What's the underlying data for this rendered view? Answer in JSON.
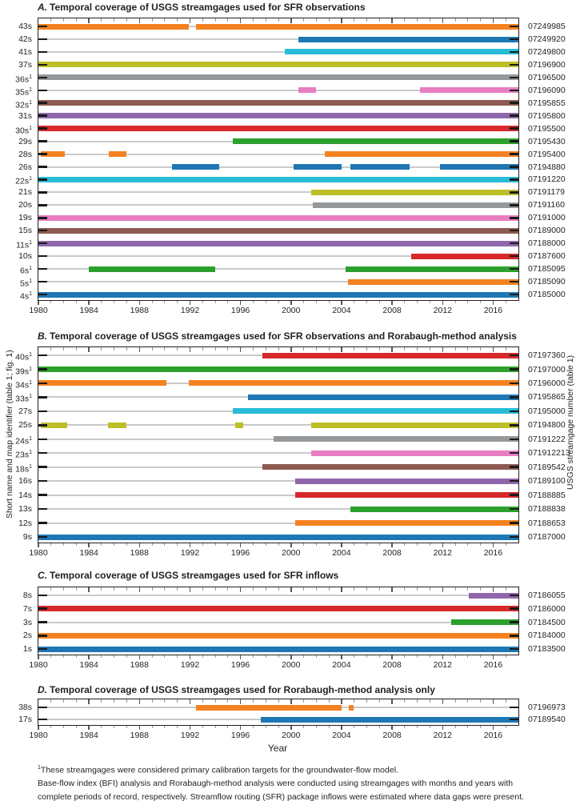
{
  "figure": {
    "left_axis_label": "Short name and map identifier (table 1; fig. 1)",
    "right_axis_label": "USGS streamgage number (table 1)",
    "x_axis_label": "Year",
    "footnote_marker": "1",
    "footnotes": [
      "These streamgages were considered primary calibration targets for the groundwater-flow model.",
      "Base-flow index (BFI) analysis and Rorabaugh-method analysis were conducted using streamgages with months and years with",
      "complete periods of record, respectively. Streamflow routing (SFR) package inflows were estimated where data gaps were present."
    ]
  },
  "palette": {
    "blue": "#1F77B4",
    "orange": "#F58220",
    "green": "#2CA02C",
    "red": "#D7282A",
    "purple": "#9067AD",
    "brown": "#8C5A50",
    "pink": "#E87EC1",
    "gray": "#95989B",
    "olive": "#BEBF27",
    "cyan": "#28BDD7"
  },
  "chart_data": [
    {
      "type": "bar",
      "subtype": "horizontal-interval-timeline",
      "letter": "A.",
      "title": "Temporal coverage of USGS streamgages used for SFR observations",
      "xlabel": "Year",
      "xlim": [
        1980,
        2018
      ],
      "x_major_ticks": [
        1980,
        1984,
        1988,
        1992,
        1996,
        2000,
        2004,
        2008,
        2012,
        2016
      ],
      "x_minor_tick_interval": 1,
      "grid": false,
      "legend": "none",
      "rows": [
        {
          "label": "43s",
          "footnoted": false,
          "gage": "07249985",
          "color": "orange",
          "intervals": [
            [
              1980,
              1991.9
            ],
            [
              1992.45,
              2018
            ]
          ]
        },
        {
          "label": "42s",
          "footnoted": false,
          "gage": "07249920",
          "color": "blue",
          "intervals": [
            [
              2000.6,
              2018
            ]
          ]
        },
        {
          "label": "41s",
          "footnoted": false,
          "gage": "07249800",
          "color": "cyan",
          "intervals": [
            [
              1999.5,
              2018
            ]
          ]
        },
        {
          "label": "37s",
          "footnoted": false,
          "gage": "07196900",
          "color": "olive",
          "intervals": [
            [
              1980,
              2018
            ]
          ]
        },
        {
          "label": "36s",
          "footnoted": true,
          "gage": "07196500",
          "color": "gray",
          "intervals": [
            [
              1980,
              2018
            ]
          ]
        },
        {
          "label": "35s",
          "footnoted": true,
          "gage": "07196090",
          "color": "pink",
          "intervals": [
            [
              2000.6,
              2002.0
            ],
            [
              2010.2,
              2018
            ]
          ]
        },
        {
          "label": "32s",
          "footnoted": true,
          "gage": "07195855",
          "color": "brown",
          "intervals": [
            [
              1980,
              2018
            ]
          ]
        },
        {
          "label": "31s",
          "footnoted": false,
          "gage": "07195800",
          "color": "purple",
          "intervals": [
            [
              1980,
              2018
            ]
          ]
        },
        {
          "label": "30s",
          "footnoted": true,
          "gage": "07195500",
          "color": "red",
          "intervals": [
            [
              1980,
              2018
            ]
          ]
        },
        {
          "label": "29s",
          "footnoted": false,
          "gage": "07195430",
          "color": "green",
          "intervals": [
            [
              1995.4,
              2018
            ]
          ]
        },
        {
          "label": "28s",
          "footnoted": false,
          "gage": "07195400",
          "color": "orange",
          "intervals": [
            [
              1980.2,
              1982.1
            ],
            [
              1985.6,
              1987.0
            ],
            [
              2002.7,
              2018
            ]
          ]
        },
        {
          "label": "26s",
          "footnoted": false,
          "gage": "07194880",
          "color": "blue",
          "intervals": [
            [
              1990.6,
              1994.3
            ],
            [
              2000.2,
              2004.0
            ],
            [
              2004.7,
              2009.4
            ],
            [
              2011.8,
              2018
            ]
          ]
        },
        {
          "label": "22s",
          "footnoted": true,
          "gage": "07191220",
          "color": "cyan",
          "intervals": [
            [
              1980,
              2018
            ]
          ]
        },
        {
          "label": "21s",
          "footnoted": false,
          "gage": "07191179",
          "color": "olive",
          "intervals": [
            [
              2001.6,
              2018
            ]
          ]
        },
        {
          "label": "20s",
          "footnoted": false,
          "gage": "07191160",
          "color": "gray",
          "intervals": [
            [
              2001.7,
              2018
            ]
          ]
        },
        {
          "label": "19s",
          "footnoted": false,
          "gage": "07191000",
          "color": "pink",
          "intervals": [
            [
              1980,
              2018
            ]
          ]
        },
        {
          "label": "15s",
          "footnoted": false,
          "gage": "07189000",
          "color": "brown",
          "intervals": [
            [
              1980,
              2018
            ]
          ]
        },
        {
          "label": "11s",
          "footnoted": true,
          "gage": "07188000",
          "color": "purple",
          "intervals": [
            [
              1980,
              2018
            ]
          ]
        },
        {
          "label": "10s",
          "footnoted": false,
          "gage": "07187600",
          "color": "red",
          "intervals": [
            [
              2009.5,
              2018
            ]
          ]
        },
        {
          "label": "6s",
          "footnoted": true,
          "gage": "07185095",
          "color": "green",
          "intervals": [
            [
              1984.0,
              1994.0
            ],
            [
              2004.3,
              2018
            ]
          ]
        },
        {
          "label": "5s",
          "footnoted": true,
          "gage": "07185090",
          "color": "orange",
          "intervals": [
            [
              2004.5,
              2018
            ]
          ]
        },
        {
          "label": "4s",
          "footnoted": true,
          "gage": "07185000",
          "color": "blue",
          "intervals": [
            [
              1980,
              2018
            ]
          ]
        }
      ]
    },
    {
      "type": "bar",
      "subtype": "horizontal-interval-timeline",
      "letter": "B.",
      "title": "Temporal coverage of USGS streamgages used for SFR observations and Rorabaugh-method analysis",
      "xlabel": "Year",
      "xlim": [
        1980,
        2018
      ],
      "x_major_ticks": [
        1980,
        1984,
        1988,
        1992,
        1996,
        2000,
        2004,
        2008,
        2012,
        2016
      ],
      "x_minor_tick_interval": 1,
      "grid": false,
      "legend": "none",
      "rows": [
        {
          "label": "40s",
          "footnoted": true,
          "gage": "07197360",
          "color": "red",
          "intervals": [
            [
              1997.7,
              2018
            ]
          ]
        },
        {
          "label": "39s",
          "footnoted": true,
          "gage": "07197000",
          "color": "green",
          "intervals": [
            [
              1980,
              2018
            ]
          ]
        },
        {
          "label": "34s",
          "footnoted": true,
          "gage": "07196000",
          "color": "orange",
          "intervals": [
            [
              1980,
              1990.1
            ],
            [
              1991.9,
              2018
            ]
          ]
        },
        {
          "label": "33s",
          "footnoted": true,
          "gage": "07195865",
          "color": "blue",
          "intervals": [
            [
              1996.6,
              2018
            ]
          ]
        },
        {
          "label": "27s",
          "footnoted": false,
          "gage": "07195000",
          "color": "cyan",
          "intervals": [
            [
              1995.4,
              2018
            ]
          ]
        },
        {
          "label": "25s",
          "footnoted": false,
          "gage": "07194800",
          "color": "olive",
          "intervals": [
            [
              1980.2,
              1982.3
            ],
            [
              1985.5,
              1987.0
            ],
            [
              1995.6,
              1996.2
            ],
            [
              2001.6,
              2018
            ]
          ]
        },
        {
          "label": "24s",
          "footnoted": true,
          "gage": "07191222",
          "color": "gray",
          "intervals": [
            [
              1998.6,
              2018
            ]
          ]
        },
        {
          "label": "23s",
          "footnoted": true,
          "gage": "071912213",
          "color": "pink",
          "intervals": [
            [
              2001.6,
              2018
            ]
          ]
        },
        {
          "label": "18s",
          "footnoted": true,
          "gage": "07189542",
          "color": "brown",
          "intervals": [
            [
              1997.7,
              2018
            ]
          ]
        },
        {
          "label": "16s",
          "footnoted": false,
          "gage": "07189100",
          "color": "purple",
          "intervals": [
            [
              2000.3,
              2018
            ]
          ]
        },
        {
          "label": "14s",
          "footnoted": false,
          "gage": "07188885",
          "color": "red",
          "intervals": [
            [
              2000.3,
              2018
            ]
          ]
        },
        {
          "label": "13s",
          "footnoted": false,
          "gage": "07188838",
          "color": "green",
          "intervals": [
            [
              2004.7,
              2018
            ]
          ]
        },
        {
          "label": "12s",
          "footnoted": false,
          "gage": "07188653",
          "color": "orange",
          "intervals": [
            [
              2000.3,
              2018
            ]
          ]
        },
        {
          "label": "9s",
          "footnoted": false,
          "gage": "07187000",
          "color": "blue",
          "intervals": [
            [
              1980,
              2018
            ]
          ]
        }
      ]
    },
    {
      "type": "bar",
      "subtype": "horizontal-interval-timeline",
      "letter": "C.",
      "title": "Temporal coverage of USGS streamgages used for SFR inflows",
      "xlabel": "Year",
      "xlim": [
        1980,
        2018
      ],
      "x_major_ticks": [
        1980,
        1984,
        1988,
        1992,
        1996,
        2000,
        2004,
        2008,
        2012,
        2016
      ],
      "x_minor_tick_interval": 1,
      "grid": false,
      "legend": "none",
      "rows": [
        {
          "label": "8s",
          "footnoted": false,
          "gage": "07186055",
          "color": "purple",
          "intervals": [
            [
              2014.1,
              2018
            ]
          ]
        },
        {
          "label": "7s",
          "footnoted": false,
          "gage": "07186000",
          "color": "red",
          "intervals": [
            [
              1980,
              2018
            ]
          ]
        },
        {
          "label": "3s",
          "footnoted": false,
          "gage": "07184500",
          "color": "green",
          "intervals": [
            [
              2012.7,
              2018
            ]
          ]
        },
        {
          "label": "2s",
          "footnoted": false,
          "gage": "07184000",
          "color": "orange",
          "intervals": [
            [
              1980,
              2018
            ]
          ]
        },
        {
          "label": "1s",
          "footnoted": false,
          "gage": "07183500",
          "color": "blue",
          "intervals": [
            [
              1980,
              2018
            ]
          ]
        }
      ]
    },
    {
      "type": "bar",
      "subtype": "horizontal-interval-timeline",
      "letter": "D.",
      "title": "Temporal coverage of USGS streamgages used for Rorabaugh-method analysis only",
      "xlabel": "Year",
      "xlim": [
        1980,
        2018
      ],
      "x_major_ticks": [
        1980,
        1984,
        1988,
        1992,
        1996,
        2000,
        2004,
        2008,
        2012,
        2016
      ],
      "x_minor_tick_interval": 1,
      "grid": false,
      "legend": "none",
      "rows": [
        {
          "label": "38s",
          "footnoted": false,
          "gage": "07196973",
          "color": "orange",
          "intervals": [
            [
              1992.5,
              2004.0
            ],
            [
              2004.6,
              2004.95
            ]
          ]
        },
        {
          "label": "17s",
          "footnoted": false,
          "gage": "07189540",
          "color": "blue",
          "intervals": [
            [
              1997.6,
              2018
            ]
          ]
        }
      ]
    }
  ]
}
